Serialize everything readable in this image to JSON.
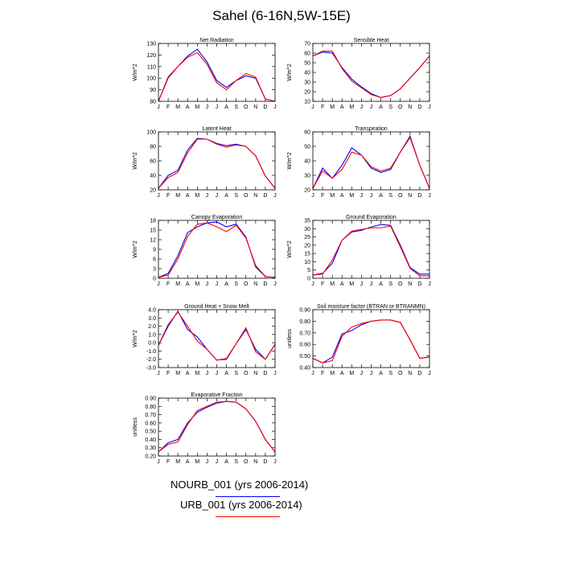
{
  "figure_title": "Sahel (6-16N,5W-15E)",
  "legend": [
    {
      "label": "NOURB_001 (yrs 2006-2014)",
      "color": "#0000ff"
    },
    {
      "label": "URB_001 (yrs 2006-2014)",
      "color": "#ff0000"
    }
  ],
  "chart_data": [
    {
      "type": "line",
      "title": "Net Radiation",
      "ylabel": "W/m^2",
      "ylim": [
        80,
        130
      ],
      "yticks": [
        80,
        90,
        100,
        110,
        120,
        130
      ],
      "x": [
        "J",
        "F",
        "M",
        "A",
        "M",
        "J",
        "J",
        "A",
        "S",
        "O",
        "N",
        "D",
        "J"
      ],
      "series": [
        {
          "color": "#0000ff",
          "values": [
            80,
            101,
            110,
            119,
            125,
            114,
            98,
            92,
            98,
            102,
            100,
            82,
            80
          ]
        },
        {
          "color": "#ff0000",
          "values": [
            80,
            100,
            110,
            118,
            122,
            112,
            96,
            90,
            98,
            104,
            101,
            82,
            80
          ]
        }
      ]
    },
    {
      "type": "line",
      "title": "Sensible Heat",
      "ylabel": "W/m^2",
      "ylim": [
        10,
        70
      ],
      "yticks": [
        10,
        20,
        30,
        40,
        50,
        60,
        70
      ],
      "x": [
        "J",
        "F",
        "M",
        "A",
        "M",
        "J",
        "J",
        "A",
        "S",
        "O",
        "N",
        "D",
        "J"
      ],
      "series": [
        {
          "color": "#0000ff",
          "values": [
            57,
            61,
            60,
            45,
            33,
            25,
            18,
            14,
            16,
            23,
            34,
            45,
            57
          ]
        },
        {
          "color": "#ff0000",
          "values": [
            57,
            62,
            62,
            44,
            31,
            24,
            17,
            14,
            16,
            23,
            34,
            45,
            57
          ]
        }
      ]
    },
    {
      "type": "line",
      "title": "Latent Heat",
      "ylabel": "W/m^2",
      "ylim": [
        20,
        100
      ],
      "yticks": [
        20,
        40,
        60,
        80,
        100
      ],
      "x": [
        "J",
        "F",
        "M",
        "A",
        "M",
        "J",
        "J",
        "A",
        "S",
        "O",
        "N",
        "D",
        "J"
      ],
      "series": [
        {
          "color": "#0000ff",
          "values": [
            22,
            40,
            47,
            75,
            91,
            90,
            84,
            81,
            83,
            80,
            67,
            39,
            22
          ]
        },
        {
          "color": "#ff0000",
          "values": [
            22,
            37,
            44,
            71,
            90,
            90,
            83,
            79,
            82,
            80,
            67,
            39,
            22
          ]
        }
      ]
    },
    {
      "type": "line",
      "title": "Transpiration",
      "ylabel": "W/m^2",
      "ylim": [
        20,
        60
      ],
      "yticks": [
        20,
        30,
        40,
        50,
        60
      ],
      "x": [
        "J",
        "F",
        "M",
        "A",
        "M",
        "J",
        "J",
        "A",
        "S",
        "O",
        "N",
        "D",
        "J"
      ],
      "series": [
        {
          "color": "#0000ff",
          "values": [
            21,
            35,
            28,
            37,
            49,
            44,
            35,
            32,
            34,
            46,
            57,
            37,
            21
          ]
        },
        {
          "color": "#ff0000",
          "values": [
            21,
            33,
            28,
            34,
            46,
            44,
            36,
            33,
            35,
            46,
            56,
            37,
            21
          ]
        }
      ]
    },
    {
      "type": "line",
      "title": "Canopy Evaporation",
      "ylabel": "W/m^2",
      "ylim": [
        0,
        18
      ],
      "yticks": [
        0,
        3,
        6,
        9,
        12,
        15,
        18
      ],
      "x": [
        "J",
        "F",
        "M",
        "A",
        "M",
        "J",
        "J",
        "A",
        "S",
        "O",
        "N",
        "D",
        "J"
      ],
      "series": [
        {
          "color": "#0000ff",
          "values": [
            0.3,
            1.5,
            7,
            14.2,
            16,
            17.2,
            17.5,
            16,
            16.8,
            12.8,
            3.5,
            0.5,
            0.3
          ]
        },
        {
          "color": "#ff0000",
          "values": [
            0.3,
            1.0,
            6,
            13,
            16.8,
            17.2,
            16,
            14.5,
            16.5,
            12.5,
            4,
            0.5,
            0.3
          ]
        }
      ]
    },
    {
      "type": "line",
      "title": "Ground Evaporation",
      "ylabel": "W/m^2",
      "ylim": [
        0,
        35
      ],
      "yticks": [
        0,
        5,
        10,
        15,
        20,
        25,
        30,
        35
      ],
      "x": [
        "J",
        "F",
        "M",
        "A",
        "M",
        "J",
        "J",
        "A",
        "S",
        "O",
        "N",
        "D",
        "J"
      ],
      "series": [
        {
          "color": "#0000ff",
          "values": [
            2,
            3,
            9,
            23,
            28,
            29,
            31,
            32.5,
            32,
            20,
            6.5,
            2.5,
            2.5
          ]
        },
        {
          "color": "#ff0000",
          "values": [
            2,
            2.5,
            11,
            23,
            28.5,
            29.5,
            30.5,
            30.5,
            31.5,
            19,
            6,
            1.5,
            1.5
          ]
        }
      ]
    },
    {
      "type": "line",
      "title": "Ground Heat + Snow Melt",
      "ylabel": "W/m^2",
      "ylim": [
        -3,
        4
      ],
      "yticks": [
        -3.0,
        -2.0,
        -1.0,
        0.0,
        1.0,
        2.0,
        3.0,
        4.0
      ],
      "ytick_labels": [
        "-3.0",
        "-2.0",
        "-1.0",
        "0.0",
        "1.0",
        "2.0",
        "3.0",
        "4.0"
      ],
      "x": [
        "J",
        "F",
        "M",
        "A",
        "M",
        "J",
        "J",
        "A",
        "S",
        "O",
        "N",
        "D",
        "J"
      ],
      "series": [
        {
          "color": "#0000ff",
          "values": [
            -0.3,
            2.0,
            3.8,
            1.6,
            0.7,
            -0.8,
            -2.1,
            -2.0,
            -0.1,
            1.6,
            -0.8,
            -2.0,
            -0.2
          ]
        },
        {
          "color": "#ff0000",
          "values": [
            -0.3,
            2.2,
            3.7,
            2.0,
            0.2,
            -0.8,
            -2.1,
            -1.9,
            -0.1,
            1.8,
            -1.1,
            -2.0,
            -0.2
          ]
        }
      ]
    },
    {
      "type": "line",
      "title": "Soil moisture factor (BTRAN or BTRANMN)",
      "ylabel": "unitless",
      "ylim": [
        0.4,
        0.9
      ],
      "yticks": [
        0.4,
        0.5,
        0.6,
        0.7,
        0.8,
        0.9
      ],
      "ytick_labels": [
        "0.40",
        "0.50",
        "0.60",
        "0.70",
        "0.80",
        "0.90"
      ],
      "x": [
        "J",
        "F",
        "M",
        "A",
        "M",
        "J",
        "J",
        "A",
        "S",
        "O",
        "N",
        "D",
        "J"
      ],
      "series": [
        {
          "color": "#0000ff",
          "values": [
            0.48,
            0.44,
            0.49,
            0.69,
            0.72,
            0.77,
            0.8,
            0.81,
            0.81,
            0.79,
            0.64,
            0.48,
            0.49
          ]
        },
        {
          "color": "#ff0000",
          "values": [
            0.48,
            0.44,
            0.46,
            0.67,
            0.75,
            0.78,
            0.8,
            0.81,
            0.81,
            0.79,
            0.64,
            0.48,
            0.49
          ]
        }
      ]
    },
    {
      "type": "line",
      "title": "Evaporative Fraction",
      "ylabel": "unitless",
      "ylim": [
        0.2,
        0.9
      ],
      "yticks": [
        0.2,
        0.3,
        0.4,
        0.5,
        0.6,
        0.7,
        0.8,
        0.9
      ],
      "ytick_labels": [
        "0.20",
        "0.30",
        "0.40",
        "0.50",
        "0.60",
        "0.70",
        "0.80",
        "0.90"
      ],
      "x": [
        "J",
        "F",
        "M",
        "A",
        "M",
        "J",
        "J",
        "A",
        "S",
        "O",
        "N",
        "D",
        "J"
      ],
      "series": [
        {
          "color": "#0000ff",
          "values": [
            0.25,
            0.36,
            0.4,
            0.6,
            0.73,
            0.79,
            0.84,
            0.86,
            0.85,
            0.77,
            0.62,
            0.4,
            0.25
          ]
        },
        {
          "color": "#ff0000",
          "values": [
            0.25,
            0.34,
            0.37,
            0.58,
            0.75,
            0.8,
            0.85,
            0.86,
            0.85,
            0.77,
            0.62,
            0.4,
            0.25
          ]
        }
      ]
    }
  ]
}
